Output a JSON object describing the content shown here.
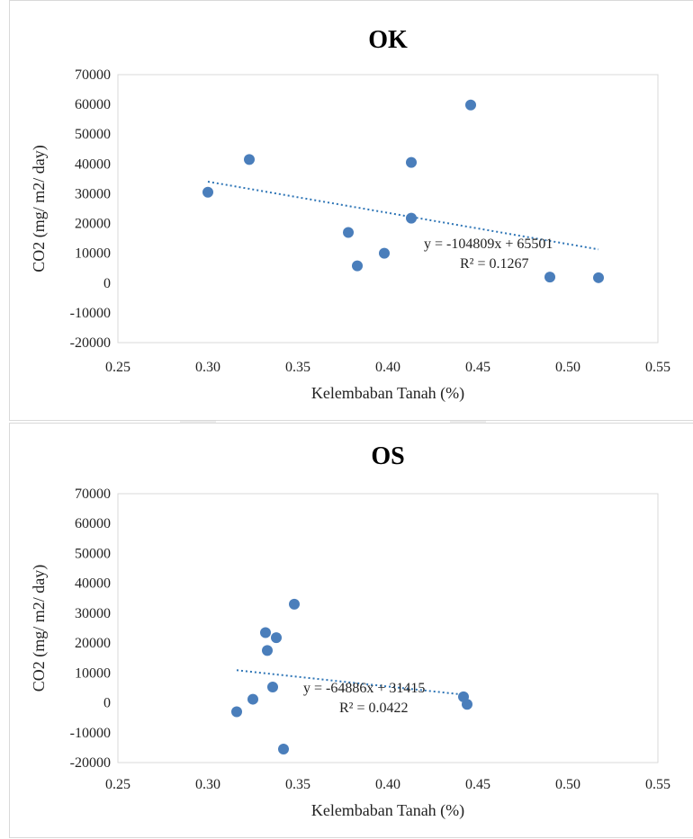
{
  "chart_data": [
    {
      "type": "scatter",
      "title": "OK",
      "xlabel": "Kelembaban Tanah (%)",
      "ylabel": "CO2 (mg/ m2/ day)",
      "xlim": [
        0.25,
        0.55
      ],
      "ylim": [
        -20000,
        70000
      ],
      "xticks": [
        "0.25",
        "0.30",
        "0.35",
        "0.40",
        "0.45",
        "0.50",
        "0.55"
      ],
      "yticks": [
        "70000",
        "60000",
        "50000",
        "40000",
        "30000",
        "20000",
        "10000",
        "0",
        "-10000",
        "-20000"
      ],
      "grid": false,
      "legend": "none",
      "marker_color": "#4a7ebb",
      "trend_color": "#2e75b6",
      "points": [
        {
          "x": 0.3,
          "y": 30500
        },
        {
          "x": 0.323,
          "y": 41500
        },
        {
          "x": 0.378,
          "y": 17000
        },
        {
          "x": 0.383,
          "y": 5800
        },
        {
          "x": 0.398,
          "y": 10000
        },
        {
          "x": 0.413,
          "y": 40500
        },
        {
          "x": 0.413,
          "y": 21800
        },
        {
          "x": 0.446,
          "y": 59800
        },
        {
          "x": 0.49,
          "y": 2000
        },
        {
          "x": 0.517,
          "y": 1800
        }
      ],
      "trendline": {
        "slope": -104809,
        "intercept": 65501,
        "x_range": [
          0.3,
          0.517
        ]
      },
      "equation": "y = -104809x + 65501",
      "r2": "R² = 0.1267"
    },
    {
      "type": "scatter",
      "title": "OS",
      "xlabel": "Kelembaban Tanah (%)",
      "ylabel": "CO2 (mg/ m2/ day)",
      "xlim": [
        0.25,
        0.55
      ],
      "ylim": [
        -20000,
        70000
      ],
      "xticks": [
        "0.25",
        "0.30",
        "0.35",
        "0.40",
        "0.45",
        "0.50",
        "0.55"
      ],
      "yticks": [
        "70000",
        "60000",
        "50000",
        "40000",
        "30000",
        "20000",
        "10000",
        "0",
        "-10000",
        "-20000"
      ],
      "grid": false,
      "legend": "none",
      "marker_color": "#4a7ebb",
      "trend_color": "#2e75b6",
      "points": [
        {
          "x": 0.316,
          "y": -3000
        },
        {
          "x": 0.325,
          "y": 1200
        },
        {
          "x": 0.332,
          "y": 23500
        },
        {
          "x": 0.333,
          "y": 17500
        },
        {
          "x": 0.336,
          "y": 5300
        },
        {
          "x": 0.338,
          "y": 21800
        },
        {
          "x": 0.342,
          "y": -15500
        },
        {
          "x": 0.348,
          "y": 33000
        },
        {
          "x": 0.442,
          "y": 2000
        },
        {
          "x": 0.444,
          "y": -500
        }
      ],
      "trendline": {
        "slope": -64886,
        "intercept": 31415,
        "x_range": [
          0.316,
          0.444
        ]
      },
      "equation": "y = -64886x + 31415",
      "r2": "R² = 0.0422"
    }
  ]
}
